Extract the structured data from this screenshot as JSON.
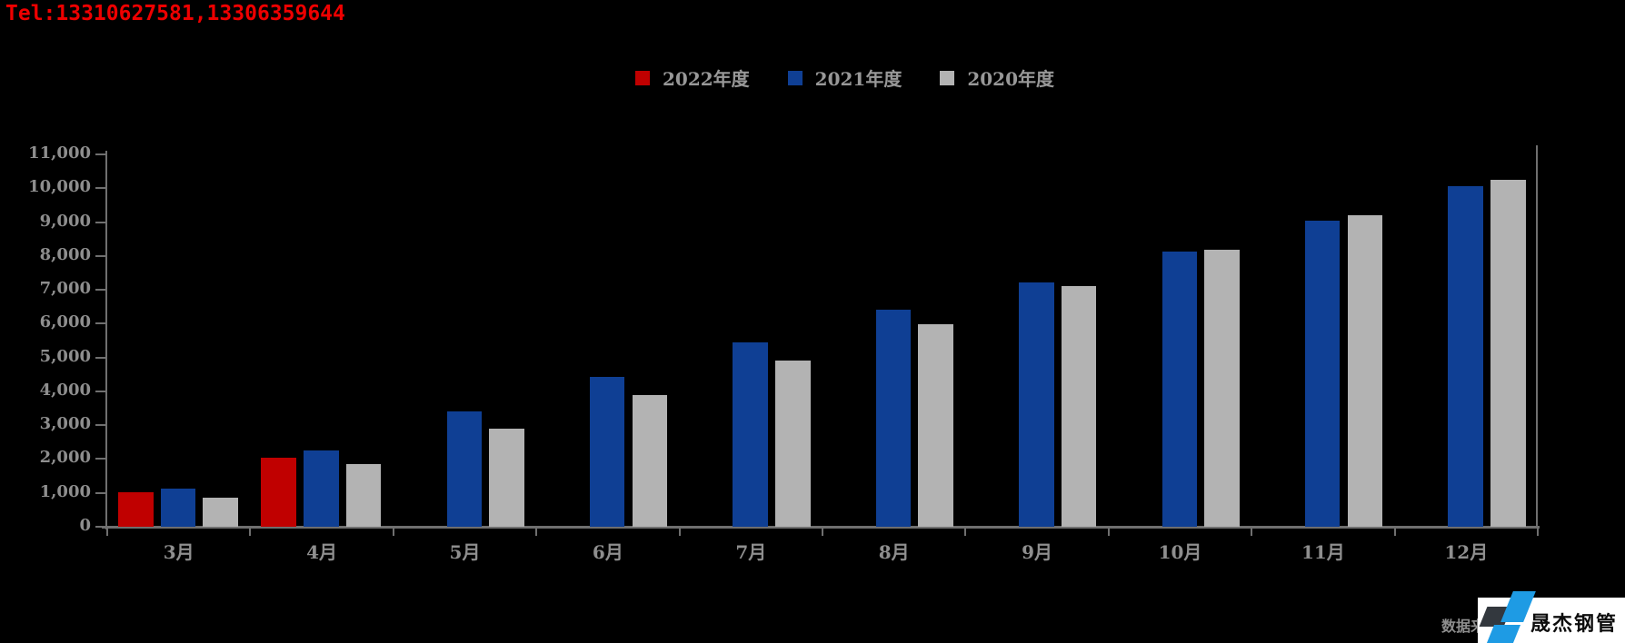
{
  "header": {
    "tel": "Tel:13310627581,13306359644"
  },
  "legend": {
    "position": "top-center",
    "items": [
      {
        "label": "2022年度",
        "color": "#c00000"
      },
      {
        "label": "2021年度",
        "color": "#0f3f94"
      },
      {
        "label": "2020年度",
        "color": "#b3b3b3"
      }
    ]
  },
  "chart_data": {
    "type": "bar",
    "title": "",
    "categories": [
      "3月",
      "4月",
      "5月",
      "6月",
      "7月",
      "8月",
      "9月",
      "10月",
      "11月",
      "12月"
    ],
    "series": [
      {
        "name": "2022年度",
        "color": "#c00000",
        "values": [
          1030,
          2030,
          null,
          null,
          null,
          null,
          null,
          null,
          null,
          null
        ]
      },
      {
        "name": "2021年度",
        "color": "#0f3f94",
        "values": [
          1130,
          2260,
          3400,
          4420,
          5450,
          6420,
          7210,
          8120,
          9030,
          10050
        ]
      },
      {
        "name": "2020年度",
        "color": "#b3b3b3",
        "values": [
          870,
          1860,
          2890,
          3900,
          4910,
          5990,
          7100,
          8190,
          9200,
          10260
        ]
      }
    ],
    "xlabel": "",
    "ylabel": "",
    "ylim": [
      0,
      11000
    ],
    "ytick_step": 1000,
    "ytick_labels": [
      "0",
      "1,000",
      "2,000",
      "3,000",
      "4,000",
      "5,000",
      "6,000",
      "7,000",
      "8,000",
      "9,000",
      "10,000",
      "11,000"
    ],
    "grid": false,
    "legend_position": "top-center",
    "axis_color": "#6f6f6f",
    "label_color": "#8e8e8e",
    "background_color": "#000000"
  },
  "footer": {
    "source_label": "数据来源",
    "brand": "晟杰钢管"
  }
}
